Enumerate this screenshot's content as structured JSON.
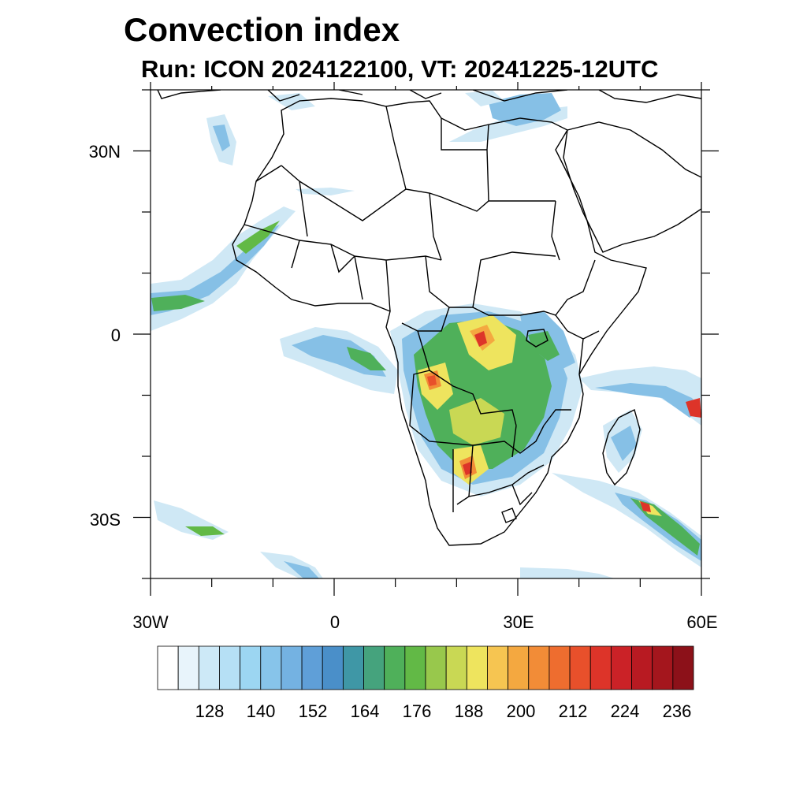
{
  "title": "Convection index",
  "subtitle": "Run: ICON 2024122100,  VT: 20241225-12UTC",
  "axes": {
    "x_ticks": [
      "30W",
      "0",
      "30E",
      "60E"
    ],
    "y_ticks": [
      "30N",
      "0",
      "30S"
    ]
  },
  "colorbar": {
    "labels": [
      "128",
      "140",
      "152",
      "164",
      "176",
      "188",
      "200",
      "212",
      "224",
      "236"
    ],
    "colors": [
      "#ffffff",
      "#e8f4fb",
      "#cde9f7",
      "#b6e0f5",
      "#9cd6f2",
      "#87c4ea",
      "#74b2e2",
      "#5f9fd8",
      "#4a8fc9",
      "#3f97a6",
      "#45a37d",
      "#4fb05a",
      "#62b946",
      "#98c84c",
      "#c9d854",
      "#eee45e",
      "#f6c551",
      "#f4a840",
      "#f28c37",
      "#ee6d2f",
      "#e8502b",
      "#dd3429",
      "#cb2227",
      "#b81a22",
      "#a4161d",
      "#8c1119"
    ]
  },
  "fill_colors": {
    "light": "#cfe8f5",
    "blue": "#86c0e6",
    "green": "#4fb05a",
    "yellow": "#eee45e",
    "orange": "#f4a840",
    "red": "#dd3429"
  }
}
